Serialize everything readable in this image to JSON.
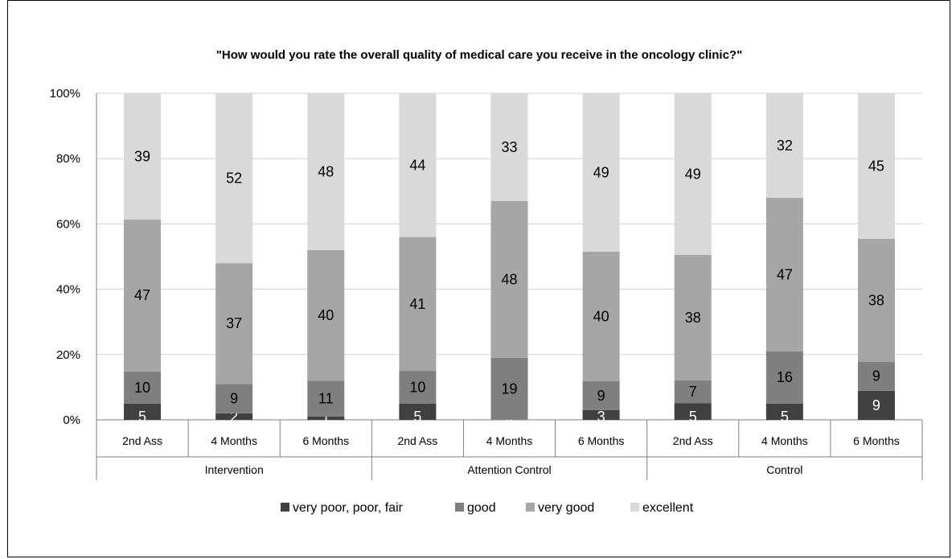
{
  "chart_data": {
    "type": "bar",
    "stacked": true,
    "percent": true,
    "title": "\"How would you rate the overall quality of medical care you receive in the oncology clinic?\"",
    "ylim": [
      0,
      100
    ],
    "y_ticks": [
      "0%",
      "20%",
      "40%",
      "60%",
      "80%",
      "100%"
    ],
    "grid": true,
    "legend_position": "bottom",
    "groups": [
      "Intervention",
      "Attention Control",
      "Control"
    ],
    "categories": [
      "2nd Ass",
      "4 Months",
      "6 Months",
      "2nd Ass",
      "4 Months",
      "6 Months",
      "2nd Ass",
      "4 Months",
      "6 Months"
    ],
    "series": [
      {
        "name": "very poor, poor, fair",
        "color": "#404040",
        "values": [
          5,
          2,
          1,
          5,
          0,
          3,
          5,
          5,
          9
        ]
      },
      {
        "name": "good",
        "color": "#7f7f7f",
        "values": [
          10,
          9,
          11,
          10,
          19,
          9,
          7,
          16,
          9
        ]
      },
      {
        "name": "very good",
        "color": "#a6a6a6",
        "values": [
          47,
          37,
          40,
          41,
          48,
          40,
          38,
          47,
          38
        ]
      },
      {
        "name": "excellent",
        "color": "#d9d9d9",
        "values": [
          39,
          52,
          48,
          44,
          33,
          49,
          49,
          32,
          45
        ]
      }
    ]
  }
}
